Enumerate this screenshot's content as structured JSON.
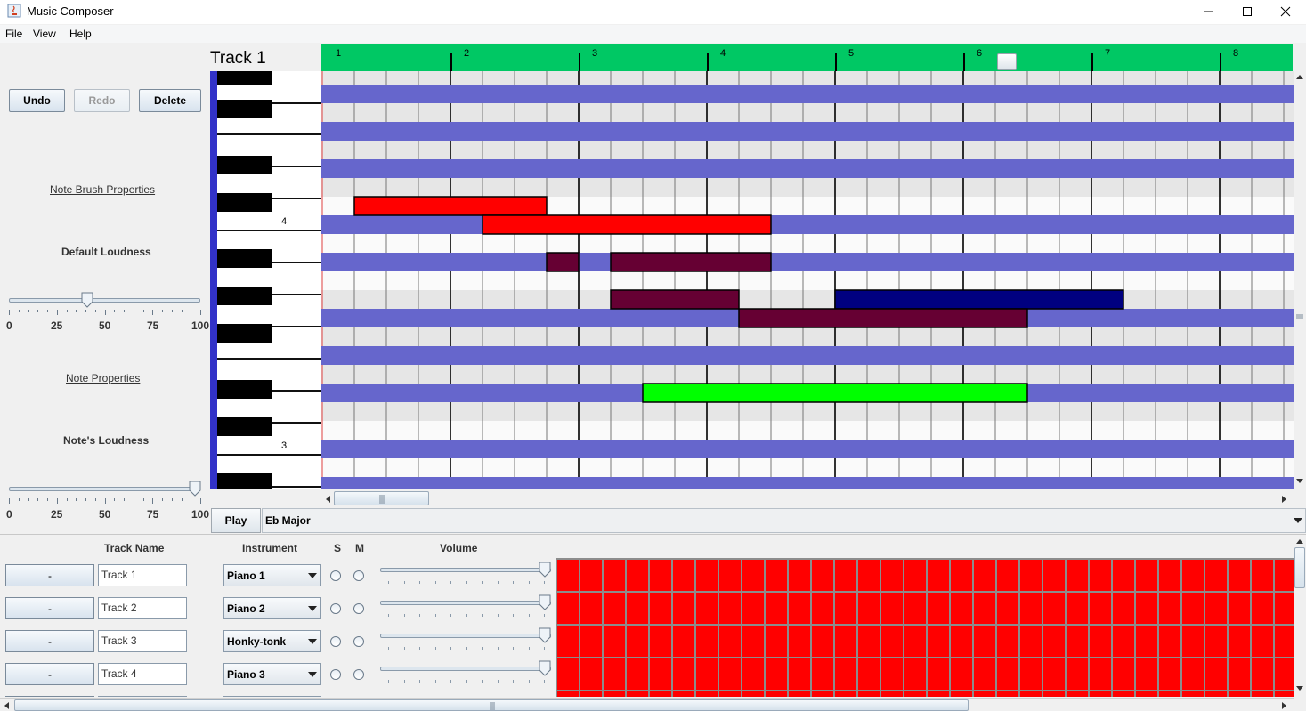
{
  "window": {
    "title": "Music Composer",
    "controls": [
      "minimize",
      "maximize",
      "close"
    ]
  },
  "menu": [
    "File",
    "View",
    "Help"
  ],
  "edit_buttons": {
    "undo": "Undo",
    "redo": "Redo",
    "delete": "Delete",
    "redo_enabled": false
  },
  "note_brush": {
    "heading": "Note Brush Properties",
    "loudness_label": "Default Loudness",
    "loudness_value": 40
  },
  "note_props": {
    "heading": "Note Properties",
    "loudness_label": "Note's Loudness",
    "loudness_value": 100
  },
  "slider_ticks": [
    "0",
    "25",
    "50",
    "75",
    "100"
  ],
  "piano_roll": {
    "track_title": "Track 1",
    "measures": [
      "1",
      "2",
      "3",
      "4",
      "5",
      "6",
      "7",
      "8"
    ],
    "octave_labels": [
      "4",
      "3"
    ],
    "playhead_measure": 6.2,
    "notes": [
      {
        "row": 7,
        "start": 1,
        "end": 7,
        "color": "#ff0000"
      },
      {
        "row": 8,
        "start": 5,
        "end": 14,
        "color": "#ff0000"
      },
      {
        "row": 10,
        "start": 7,
        "end": 8,
        "color": "#660033"
      },
      {
        "row": 10,
        "start": 9,
        "end": 14,
        "color": "#660033"
      },
      {
        "row": 12,
        "start": 9,
        "end": 13,
        "color": "#660033"
      },
      {
        "row": 12,
        "start": 16,
        "end": 25,
        "color": "#000080"
      },
      {
        "row": 13,
        "start": 13,
        "end": 22,
        "color": "#660033"
      },
      {
        "row": 17,
        "start": 10,
        "end": 22,
        "color": "#00ff00"
      }
    ]
  },
  "playbar": {
    "play": "Play",
    "key": "Eb Major"
  },
  "track_table": {
    "headers": {
      "name": "Track Name",
      "instrument": "Instrument",
      "solo": "S",
      "mute": "M",
      "volume": "Volume"
    },
    "rows": [
      {
        "button": "-",
        "name": "Track 1",
        "instrument": "Piano 1",
        "volume": 100
      },
      {
        "button": "-",
        "name": "Track 2",
        "instrument": "Piano 2",
        "volume": 100
      },
      {
        "button": "-",
        "name": "Track 3",
        "instrument": "Honky-tonk",
        "volume": 100
      },
      {
        "button": "-",
        "name": "Track 4",
        "instrument": "Piano 3",
        "volume": 100
      }
    ],
    "grid_color": "#ff0000"
  },
  "colors": {
    "timeline": "#00c864",
    "black_key_row": "#6666cc",
    "piano_stripe": "#3232c8"
  }
}
